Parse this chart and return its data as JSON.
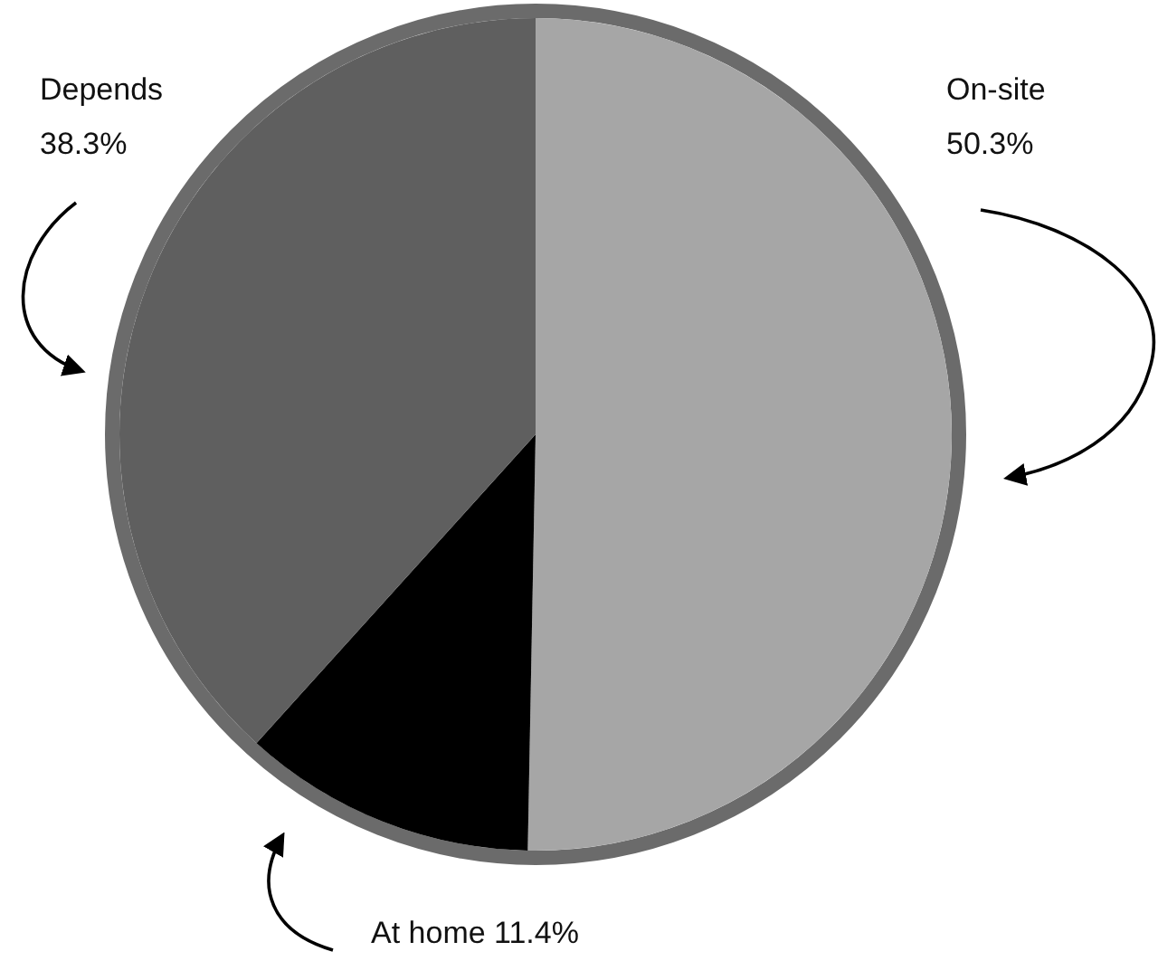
{
  "chart_data": {
    "type": "pie",
    "categories": [
      "On-site",
      "At home",
      "Depends"
    ],
    "values": [
      50.3,
      11.4,
      38.3
    ],
    "colors": [
      "#a6a6a6",
      "#000000",
      "#5f5f5f"
    ],
    "value_labels": [
      "50.3%",
      "11.4%",
      "38.3%"
    ]
  }
}
